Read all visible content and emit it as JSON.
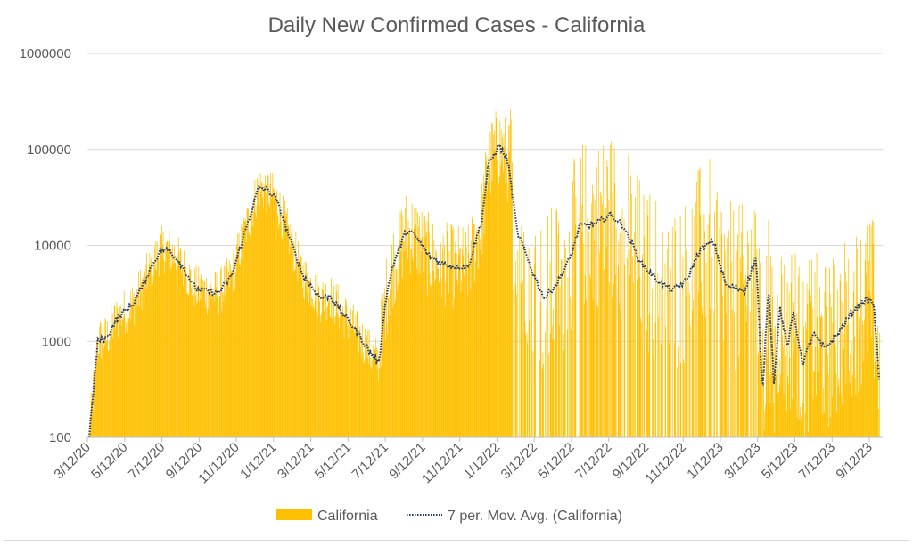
{
  "chart_data": {
    "type": "bar+line",
    "title": "Daily New Confirmed Cases - California",
    "xlabel": "",
    "ylabel": "",
    "yscale": "log",
    "ylim": [
      100,
      1000000
    ],
    "y_ticks": [
      "100",
      "1000",
      "10000",
      "100000",
      "1000000"
    ],
    "x_ticks": [
      "3/12/20",
      "5/12/20",
      "7/12/20",
      "9/12/20",
      "11/12/20",
      "1/12/21",
      "3/12/21",
      "5/12/21",
      "7/12/21",
      "9/12/21",
      "11/12/21",
      "1/12/22",
      "3/12/22",
      "5/12/22",
      "7/12/22",
      "9/12/22",
      "11/12/22",
      "1/12/23",
      "3/12/23",
      "5/12/23",
      "7/12/23",
      "9/12/23"
    ],
    "x_range_days_since_3_12_20": [
      0,
      1300
    ],
    "grid": "horizontal",
    "legend_position": "bottom",
    "colors": {
      "bars": "#FFC000",
      "line": "#203864"
    },
    "series": [
      {
        "name": "California",
        "kind": "bar",
        "note": "daily values scatter around moving average"
      },
      {
        "name": "7 per. Mov. Avg. (California)",
        "kind": "line-dotted",
        "points_day_value": [
          [
            3,
            100
          ],
          [
            17,
            1000
          ],
          [
            32,
            1100
          ],
          [
            47,
            1700
          ],
          [
            76,
            2500
          ],
          [
            105,
            6000
          ],
          [
            120,
            9000
          ],
          [
            134,
            9000
          ],
          [
            149,
            7000
          ],
          [
            178,
            3500
          ],
          [
            214,
            3200
          ],
          [
            236,
            4800
          ],
          [
            258,
            14000
          ],
          [
            280,
            40000
          ],
          [
            295,
            38000
          ],
          [
            309,
            30000
          ],
          [
            331,
            12000
          ],
          [
            353,
            4800
          ],
          [
            382,
            2800
          ],
          [
            397,
            3000
          ],
          [
            419,
            1900
          ],
          [
            440,
            1300
          ],
          [
            462,
            770
          ],
          [
            477,
            600
          ],
          [
            487,
            2500
          ],
          [
            499,
            6000
          ],
          [
            521,
            14000
          ],
          [
            535,
            13000
          ],
          [
            557,
            8000
          ],
          [
            579,
            6500
          ],
          [
            601,
            6000
          ],
          [
            623,
            6000
          ],
          [
            645,
            18000
          ],
          [
            656,
            70000
          ],
          [
            674,
            110000
          ],
          [
            688,
            75000
          ],
          [
            703,
            14000
          ],
          [
            725,
            6000
          ],
          [
            747,
            2800
          ],
          [
            768,
            4000
          ],
          [
            790,
            7500
          ],
          [
            805,
            16000
          ],
          [
            834,
            17000
          ],
          [
            855,
            21000
          ],
          [
            877,
            16000
          ],
          [
            906,
            6500
          ],
          [
            935,
            4200
          ],
          [
            957,
            3400
          ],
          [
            980,
            4300
          ],
          [
            1002,
            9000
          ],
          [
            1024,
            11000
          ],
          [
            1045,
            3800
          ],
          [
            1075,
            3400
          ],
          [
            1094,
            7500
          ],
          [
            1104,
            270
          ],
          [
            1114,
            3800
          ],
          [
            1123,
            380
          ],
          [
            1133,
            2200
          ],
          [
            1145,
            870
          ],
          [
            1155,
            2000
          ],
          [
            1170,
            580
          ],
          [
            1187,
            1200
          ],
          [
            1206,
            840
          ],
          [
            1228,
            1200
          ],
          [
            1250,
            2000
          ],
          [
            1272,
            2700
          ],
          [
            1286,
            2600
          ],
          [
            1296,
            330
          ]
        ]
      }
    ]
  },
  "legend": {
    "bars_label": "California",
    "line_label": "7 per. Mov. Avg. (California)"
  }
}
